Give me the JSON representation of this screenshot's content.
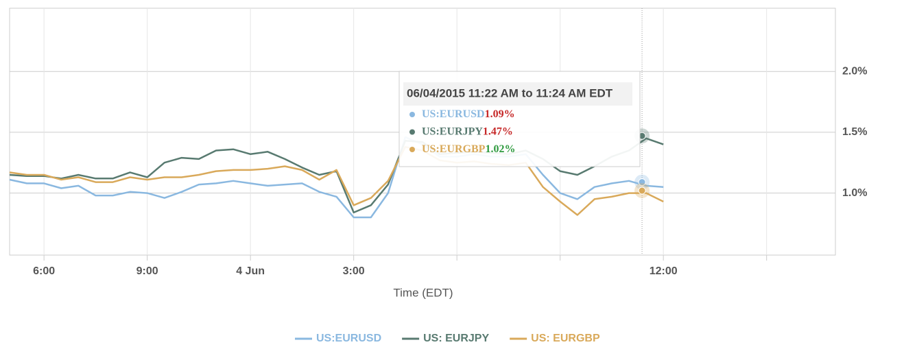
{
  "chart_data": {
    "type": "line",
    "x_label": "Time (EDT)",
    "xlim": [
      -7,
      17
    ],
    "xticks": [
      {
        "value": -6,
        "label": "6:00"
      },
      {
        "value": -3,
        "label": "9:00"
      },
      {
        "value": 0,
        "label": "4 Jun"
      },
      {
        "value": 3,
        "label": "3:00"
      },
      {
        "value": 6,
        "label": null
      },
      {
        "value": 9,
        "label": null
      },
      {
        "value": 12,
        "label": "12:00"
      },
      {
        "value": 15,
        "label": null
      }
    ],
    "ylim": [
      0.49,
      2.52
    ],
    "yticks": [
      {
        "value": 1.0,
        "label": "1.0%"
      },
      {
        "value": 1.5,
        "label": "1.5%"
      },
      {
        "value": 2.0,
        "label": "2.0%"
      }
    ],
    "grid": true,
    "legend": "bottom",
    "x": [
      -7,
      -6.5,
      -6,
      -5.5,
      -5,
      -4.5,
      -4,
      -3.5,
      -3,
      -2.5,
      -2,
      -1.5,
      -1,
      -0.5,
      0,
      0.5,
      1,
      1.5,
      2,
      2.5,
      3,
      3.5,
      4,
      4.5,
      5,
      5.5,
      6,
      6.5,
      7,
      7.5,
      8,
      8.5,
      9,
      9.5,
      10,
      10.5,
      11,
      11.5,
      12
    ],
    "series": [
      {
        "name": "US:EURUSD",
        "color": "#8ab8e0",
        "values": [
          1.11,
          1.08,
          1.08,
          1.04,
          1.06,
          0.98,
          0.98,
          1.01,
          1.0,
          0.96,
          1.01,
          1.07,
          1.08,
          1.1,
          1.08,
          1.06,
          1.07,
          1.08,
          1.01,
          0.97,
          0.8,
          0.8,
          1.0,
          1.46,
          1.4,
          1.3,
          1.3,
          1.32,
          1.3,
          1.3,
          1.32,
          1.15,
          1.0,
          0.95,
          1.05,
          1.08,
          1.1,
          1.06,
          1.05
        ]
      },
      {
        "name": "US: EURJPY",
        "color": "#587a70",
        "values": [
          1.15,
          1.14,
          1.14,
          1.12,
          1.15,
          1.12,
          1.12,
          1.17,
          1.13,
          1.25,
          1.29,
          1.28,
          1.35,
          1.36,
          1.32,
          1.34,
          1.28,
          1.21,
          1.15,
          1.18,
          0.84,
          0.9,
          1.07,
          1.43,
          1.42,
          1.32,
          1.33,
          1.34,
          1.33,
          1.32,
          1.35,
          1.28,
          1.18,
          1.15,
          1.22,
          1.3,
          1.35,
          1.45,
          1.4
        ]
      },
      {
        "name": "US: EURGBP",
        "color": "#d9a95a",
        "values": [
          1.17,
          1.15,
          1.15,
          1.11,
          1.13,
          1.09,
          1.09,
          1.13,
          1.11,
          1.13,
          1.13,
          1.15,
          1.18,
          1.19,
          1.19,
          1.2,
          1.22,
          1.19,
          1.11,
          1.19,
          0.9,
          0.96,
          1.1,
          1.38,
          1.35,
          1.27,
          1.25,
          1.26,
          1.24,
          1.23,
          1.25,
          1.05,
          0.93,
          0.82,
          0.95,
          0.97,
          1.0,
          1.0,
          0.93
        ]
      }
    ],
    "tooltip": {
      "title": "06/04/2015 11:22 AM to 11:24 AM EDT",
      "x": 11.38,
      "names": [
        "US:EURUSD",
        "US:EURJPY",
        "US:EURGBP"
      ],
      "values": [
        1.09,
        1.47,
        1.02
      ],
      "value_labels": [
        "1.09%",
        "1.47%",
        "1.02%"
      ],
      "value_colors": [
        "#c62828",
        "#c62828",
        "#2e9a3e"
      ]
    }
  }
}
